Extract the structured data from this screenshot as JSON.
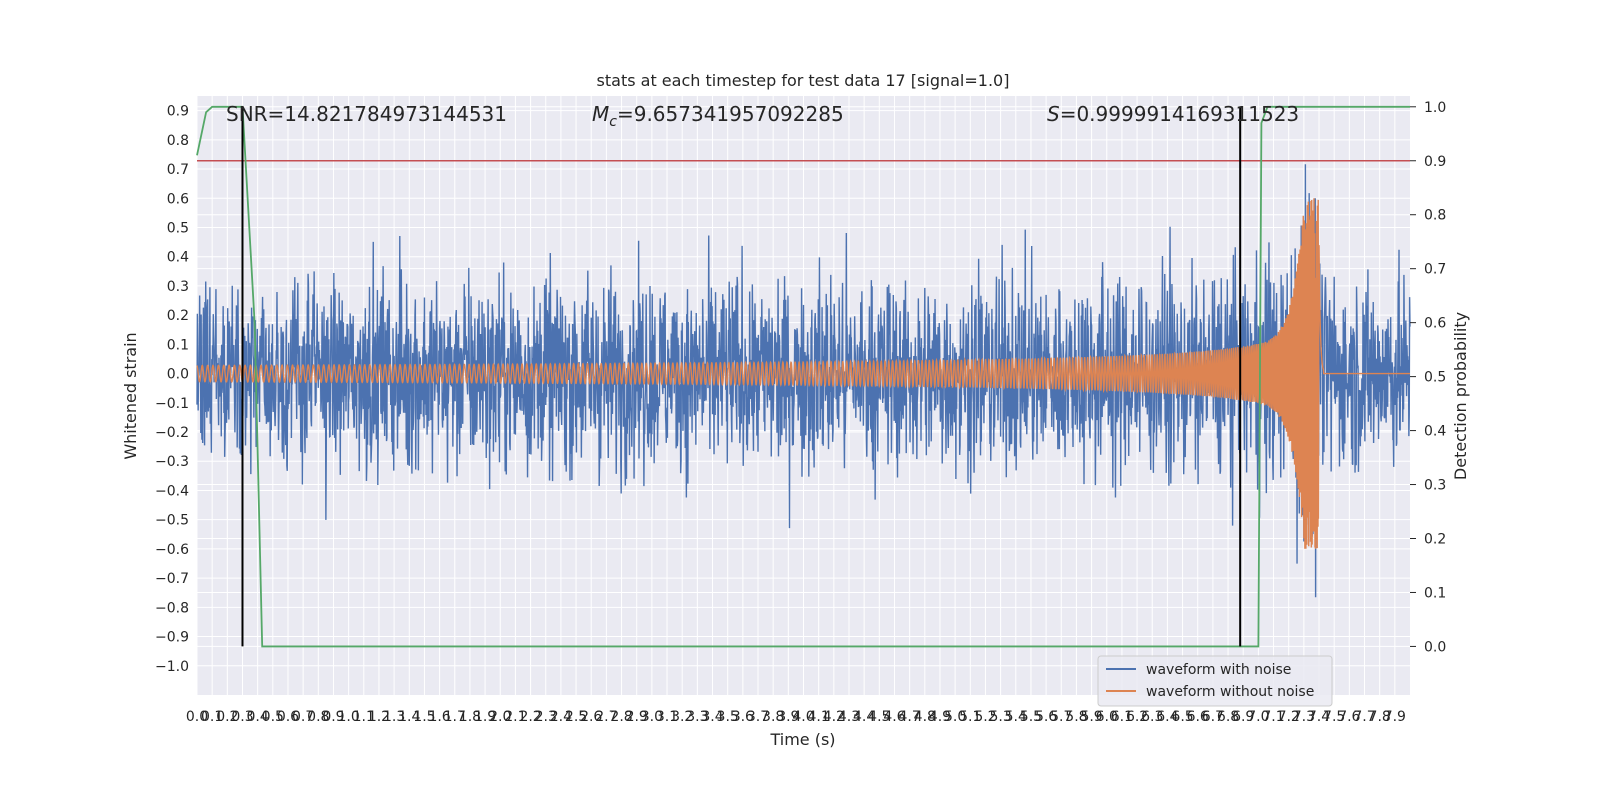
{
  "chart_data": {
    "type": "line",
    "title": "stats at each timestep for test data 17 [signal=1.0]",
    "xlabel": "Time (s)",
    "ylabel": "Whitened strain",
    "y2label": "Detection probability",
    "xlim": [
      0.0,
      8.0
    ],
    "ylim": [
      -1.1,
      0.95
    ],
    "y2lim": [
      -0.09,
      1.02
    ],
    "x_ticks": [
      "0.0",
      "0.1",
      "0.2",
      "0.3",
      "0.4",
      "0.5",
      "0.6",
      "0.7",
      "0.8",
      "0.9",
      "1.0",
      "1.1",
      "1.2",
      "1.3",
      "1.4",
      "1.5",
      "1.6",
      "1.7",
      "1.8",
      "1.9",
      "2.0",
      "2.1",
      "2.2",
      "2.3",
      "2.4",
      "2.5",
      "2.6",
      "2.7",
      "2.8",
      "2.9",
      "3.0",
      "3.1",
      "3.2",
      "3.3",
      "3.4",
      "3.5",
      "3.6",
      "3.7",
      "3.8",
      "3.9",
      "4.0",
      "4.1",
      "4.2",
      "4.3",
      "4.4",
      "4.5",
      "4.6",
      "4.7",
      "4.8",
      "4.9",
      "5.0",
      "5.1",
      "5.2",
      "5.3",
      "5.4",
      "5.5",
      "5.6",
      "5.7",
      "5.8",
      "5.9",
      "6.0",
      "6.1",
      "6.2",
      "6.3",
      "6.4",
      "6.5",
      "6.6",
      "6.7",
      "6.8",
      "6.9",
      "7.0",
      "7.1",
      "7.2",
      "7.3",
      "7.4",
      "7.5",
      "7.6",
      "7.7",
      "7.8",
      "7.9"
    ],
    "y_ticks": [
      "−1.0",
      "−0.9",
      "−0.8",
      "−0.7",
      "−0.6",
      "−0.5",
      "−0.4",
      "−0.3",
      "−0.2",
      "−0.1",
      "0.0",
      "0.1",
      "0.2",
      "0.3",
      "0.4",
      "0.5",
      "0.6",
      "0.7",
      "0.8",
      "0.9"
    ],
    "y2_ticks": [
      "0.0",
      "0.1",
      "0.2",
      "0.3",
      "0.4",
      "0.5",
      "0.6",
      "0.7",
      "0.8",
      "0.9",
      "1.0"
    ],
    "annotations": {
      "snr": "SNR=14.821784973144531",
      "mc_symbol": "M",
      "mc_sub": "c",
      "mc_value": "=9.657341957092285",
      "s_symbol": "S",
      "s_value": "=0.9999914169311523"
    },
    "series": [
      {
        "name": "waveform with noise",
        "kind": "noise",
        "approx_range": [
          -1.0,
          0.86
        ]
      },
      {
        "name": "waveform without noise",
        "kind": "chirp",
        "merger_time": 7.4,
        "peak": 0.6
      },
      {
        "kind": "probability",
        "axis": "y2",
        "x": [
          0.0,
          0.06,
          0.1,
          0.3,
          0.38,
          0.43,
          0.8,
          7.0,
          7.02,
          7.06,
          7.12,
          8.0
        ],
        "y": [
          0.91,
          0.99,
          1.0,
          1.0,
          0.6,
          0.0,
          0.0,
          0.0,
          0.97,
          1.0,
          1.0,
          1.0
        ]
      }
    ],
    "threshold_y2": 0.9,
    "markers_x": [
      0.3,
      6.88
    ],
    "legend_loc": "lower-right",
    "grid": true,
    "colors": {
      "noise": "#4c72b0",
      "chirp": "#dd8452",
      "probability": "#55a868",
      "threshold": "#c44e52",
      "marker": "#000000",
      "background": "#eaeaf2",
      "grid": "#ffffff"
    }
  }
}
